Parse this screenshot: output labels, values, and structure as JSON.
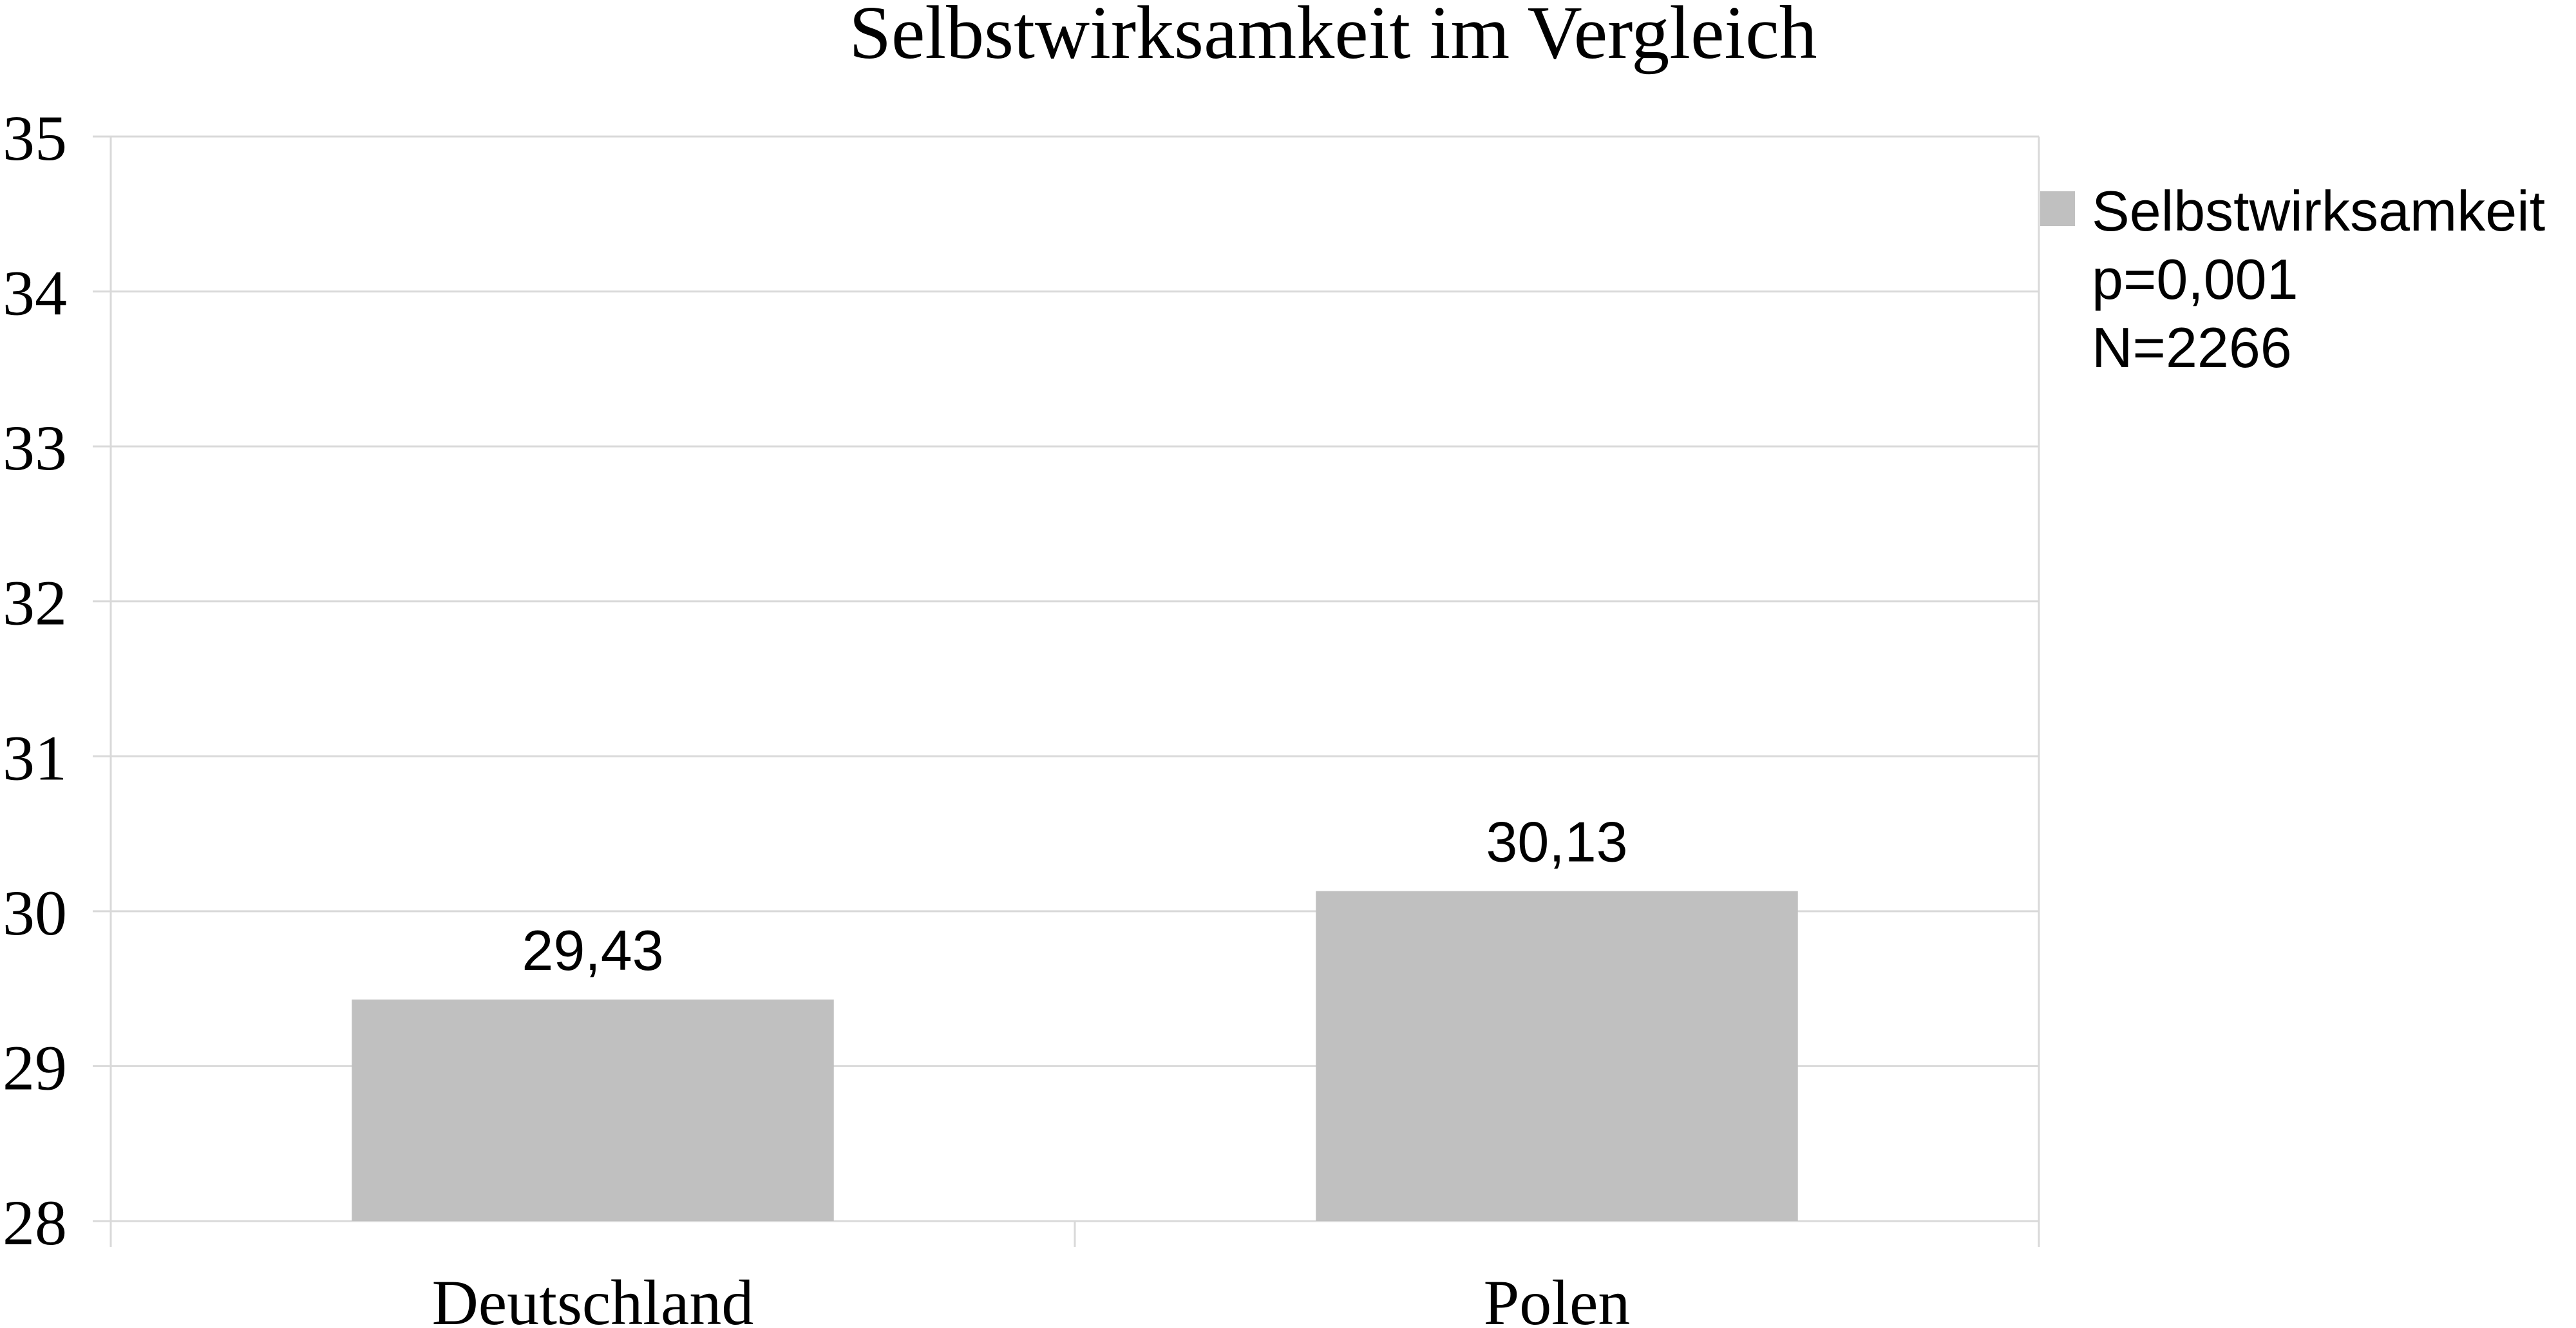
{
  "chart_data": {
    "type": "bar",
    "title": "Selbstwirksamkeit im Vergleich",
    "xlabel": "",
    "ylabel": "",
    "categories": [
      "Deutschland",
      "Polen"
    ],
    "series": [
      {
        "name": "Selbstwirksamkeit",
        "values": [
          29.43,
          30.13
        ],
        "value_labels": [
          "29,43",
          "30,13"
        ],
        "color": "#c0c0c0"
      }
    ],
    "ylim": [
      28,
      35
    ],
    "yticks": [
      "28",
      "29",
      "30",
      "31",
      "32",
      "33",
      "34",
      "35"
    ],
    "grid": true,
    "legend": {
      "placement": "right",
      "lines": [
        "Selbstwirksamkeit",
        "p=0,001",
        "N=2266"
      ]
    }
  }
}
